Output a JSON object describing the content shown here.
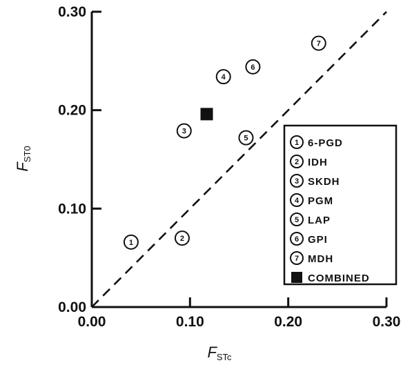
{
  "chart_data": {
    "type": "scatter",
    "title": "",
    "xlabel": {
      "main": "F",
      "sub": "STc"
    },
    "ylabel": {
      "main": "F",
      "sub": "ST0"
    },
    "xlim": [
      0.0,
      0.3
    ],
    "ylim": [
      0.0,
      0.3
    ],
    "xticks": [
      "0.00",
      "0.10",
      "0.20",
      "0.30"
    ],
    "yticks": [
      "0.00",
      "0.10",
      "0.20",
      "0.30"
    ],
    "grid": false,
    "reference_line": {
      "style": "dashed",
      "equation": "y = x"
    },
    "legend_position": "lower-right",
    "series": [
      {
        "marker": "1",
        "name": "6-PGD",
        "x": 0.04,
        "y": 0.066
      },
      {
        "marker": "2",
        "name": "IDH",
        "x": 0.092,
        "y": 0.07
      },
      {
        "marker": "3",
        "name": "SKDH",
        "x": 0.094,
        "y": 0.179
      },
      {
        "marker": "4",
        "name": "PGM",
        "x": 0.134,
        "y": 0.234
      },
      {
        "marker": "5",
        "name": "LAP",
        "x": 0.157,
        "y": 0.172
      },
      {
        "marker": "6",
        "name": "GPI",
        "x": 0.164,
        "y": 0.244
      },
      {
        "marker": "7",
        "name": "MDH",
        "x": 0.231,
        "y": 0.268
      },
      {
        "marker": "square",
        "name": "COMBINED",
        "x": 0.117,
        "y": 0.196
      }
    ]
  }
}
